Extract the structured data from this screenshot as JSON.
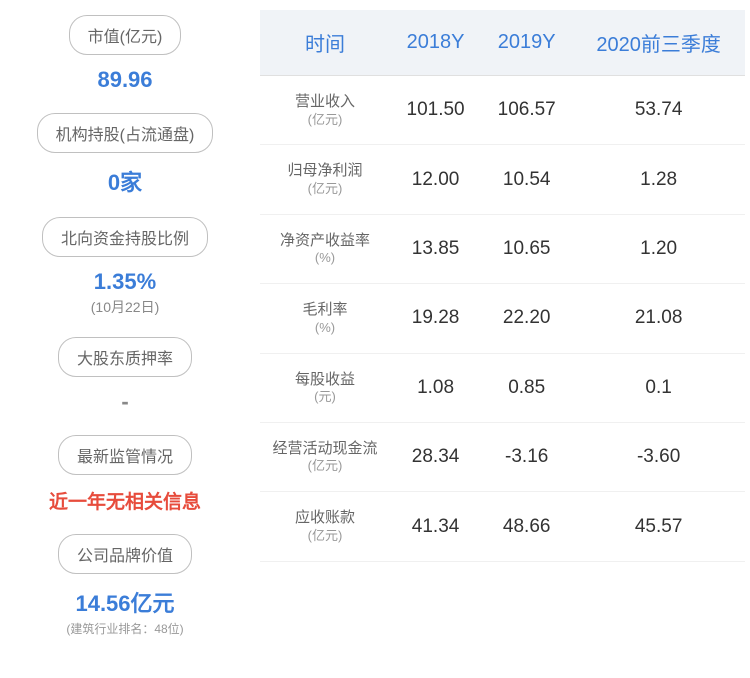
{
  "leftPanel": {
    "items": [
      {
        "label": "市值(亿元)",
        "value": "89.96",
        "valueColor": "#3b7dd8",
        "subText": ""
      },
      {
        "label": "机构持股(占流通盘)",
        "value": "0家",
        "valueColor": "#3b7dd8",
        "subText": ""
      },
      {
        "label": "北向资金持股比例",
        "value": "1.35%",
        "valueColor": "#3b7dd8",
        "subText": "(10月22日)"
      },
      {
        "label": "大股东质押率",
        "value": "-",
        "valueColor": "#888888",
        "subText": ""
      },
      {
        "label": "最新监管情况",
        "value": "近一年无相关信息",
        "valueColor": "#e74c3c",
        "subText": ""
      },
      {
        "label": "公司品牌价值",
        "value": "14.56亿元",
        "valueColor": "#3b7dd8",
        "subText": "(建筑行业排名：48位)"
      }
    ]
  },
  "table": {
    "headers": [
      "时间",
      "2018Y",
      "2019Y",
      "2020前三季度"
    ],
    "rows": [
      {
        "labelMain": "营业收入",
        "labelSub": "(亿元)",
        "cells": [
          "101.50",
          "106.57",
          "53.74"
        ]
      },
      {
        "labelMain": "归母净利润",
        "labelSub": "(亿元)",
        "cells": [
          "12.00",
          "10.54",
          "1.28"
        ]
      },
      {
        "labelMain": "净资产收益率",
        "labelSub": "(%)",
        "cells": [
          "13.85",
          "10.65",
          "1.20"
        ]
      },
      {
        "labelMain": "毛利率",
        "labelSub": "(%)",
        "cells": [
          "19.28",
          "22.20",
          "21.08"
        ]
      },
      {
        "labelMain": "每股收益",
        "labelSub": "(元)",
        "cells": [
          "1.08",
          "0.85",
          "0.1"
        ]
      },
      {
        "labelMain": "经营活动现金流",
        "labelSub": "(亿元)",
        "cells": [
          "28.34",
          "-3.16",
          "-3.60"
        ]
      },
      {
        "labelMain": "应收账款",
        "labelSub": "(亿元)",
        "cells": [
          "41.34",
          "48.66",
          "45.57"
        ]
      }
    ]
  },
  "styles": {
    "headerBg": "#f0f3f7",
    "headerColor": "#3b7dd8",
    "pillBorder": "#c0c0c0",
    "pillText": "#666666"
  }
}
